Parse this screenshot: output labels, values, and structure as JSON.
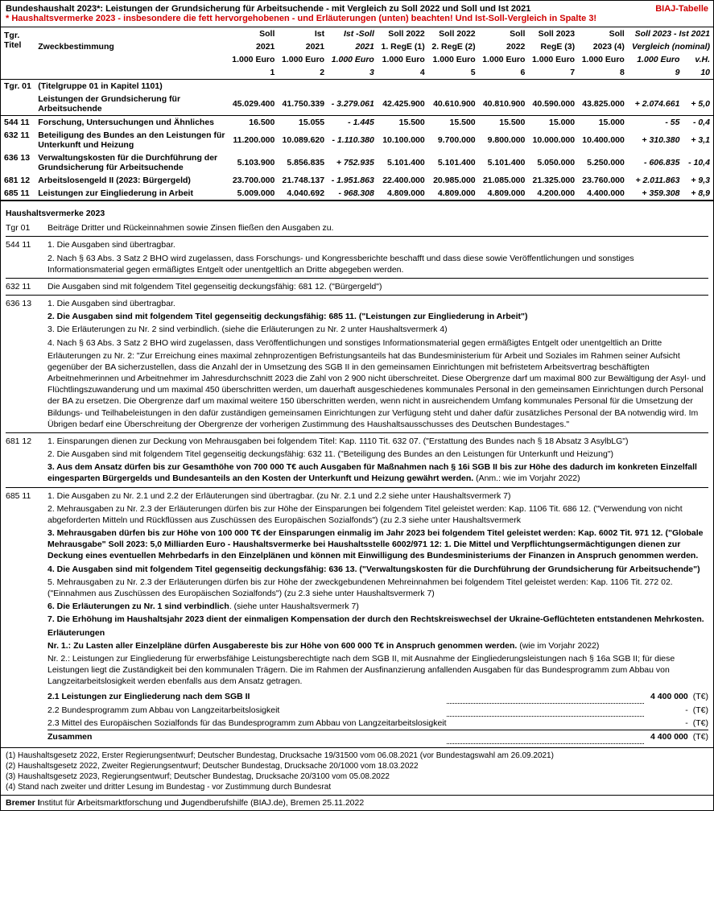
{
  "header": {
    "title": "Bundeshaushalt 2023*: Leistungen der Grundsicherung für Arbeitsuchende - mit Vergleich zu Soll 2022 und Soll und Ist 2021",
    "brand": "BIAJ-Tabelle",
    "subtitle": "* Haushaltsvermerke 2023 - insbesondere die fett hervorgehobenen - und Erläuterungen (unten) beachten! Und Ist-Soll-Vergleich in Spalte 3!"
  },
  "columns": {
    "code": "Tgr.\nTitel",
    "desc": "Zweckbestimmung",
    "c1h1": "Soll",
    "c1h2": "2021",
    "c2h1": "Ist",
    "c2h2": "2021",
    "c3h1": "Ist -Soll",
    "c3h2": "2021",
    "c4h1": "Soll 2022",
    "c4h2": "1. RegE (1)",
    "c5h1": "Soll 2022",
    "c5h2": "2. RegE (2)",
    "c6h1": "Soll",
    "c6h2": "2022",
    "c7h1": "Soll 2023",
    "c7h2": "RegE (3)",
    "c8h1": "Soll",
    "c8h2": "2023 (4)",
    "c9h1": "Soll 2023 - Ist 2021",
    "c9h2": "Vergleich (nominal)",
    "unit": "1.000 Euro",
    "vh": "v.H.",
    "colnum1": "1",
    "colnum2": "2",
    "colnum3": "3",
    "colnum4": "4",
    "colnum5": "5",
    "colnum6": "6",
    "colnum7": "7",
    "colnum8": "8",
    "colnum9": "9",
    "colnum10": "10"
  },
  "rows": [
    {
      "code": "Tgr. 01",
      "desc": "(Titelgruppe 01 in Kapitel 1101)",
      "bold": true,
      "v": []
    },
    {
      "code": "",
      "desc": "Leistungen der Grundsicherung für Arbeitsuchende",
      "bold": true,
      "v": [
        "45.029.400",
        "41.750.339",
        "- 3.279.061",
        "42.425.900",
        "40.610.900",
        "40.810.900",
        "40.590.000",
        "43.825.000",
        "+ 2.074.661",
        "+ 5,0"
      ]
    },
    {
      "code": "544 11",
      "desc": "Forschung, Untersuchungen und Ähnliches",
      "bold": true,
      "v": [
        "16.500",
        "15.055",
        "- 1.445",
        "15.500",
        "15.500",
        "15.500",
        "15.000",
        "15.000",
        "- 55",
        "- 0,4"
      ]
    },
    {
      "code": "632 11",
      "desc": "Beteiligung des Bundes an den Leistungen für Unterkunft und Heizung",
      "bold": true,
      "v": [
        "11.200.000",
        "10.089.620",
        "- 1.110.380",
        "10.100.000",
        "9.700.000",
        "9.800.000",
        "10.000.000",
        "10.400.000",
        "+ 310.380",
        "+ 3,1"
      ]
    },
    {
      "code": "636 13",
      "desc": "Verwaltungskosten für die Durchführung der Grundsicherung für Arbeitsuchende",
      "bold": true,
      "v": [
        "5.103.900",
        "5.856.835",
        "+ 752.935",
        "5.101.400",
        "5.101.400",
        "5.101.400",
        "5.050.000",
        "5.250.000",
        "- 606.835",
        "- 10,4"
      ]
    },
    {
      "code": "681 12",
      "desc": "Arbeitslosengeld II (2023: Bürgergeld)",
      "bold": true,
      "v": [
        "23.700.000",
        "21.748.137",
        "- 1.951.863",
        "22.400.000",
        "20.985.000",
        "21.085.000",
        "21.325.000",
        "23.760.000",
        "+ 2.011.863",
        "+ 9,3"
      ]
    },
    {
      "code": "685 11",
      "desc": "Leistungen zur Eingliederung in Arbeit",
      "bold": true,
      "v": [
        "5.009.000",
        "4.040.692",
        "- 968.308",
        "4.809.000",
        "4.809.000",
        "4.809.000",
        "4.200.000",
        "4.400.000",
        "+ 359.308",
        "+ 8,9"
      ]
    }
  ],
  "notes_title": "Haushaltsvermerke 2023",
  "notes": [
    {
      "code": "Tgr 01",
      "items": [
        {
          "t": "Beiträge Dritter und Rückeinnahmen sowie Zinsen fließen den Ausgaben zu."
        }
      ]
    },
    {
      "code": "544 11",
      "items": [
        {
          "t": "1. Die Ausgaben sind übertragbar."
        },
        {
          "t": "2. Nach § 63 Abs. 3 Satz 2 BHO wird zugelassen, dass Forschungs- und Kongressberichte beschafft und dass diese sowie Veröffentlichungen und sonstiges Informationsmaterial gegen ermäßigtes Entgelt oder unentgeltlich an Dritte abgegeben werden."
        }
      ]
    },
    {
      "code": "632 11",
      "items": [
        {
          "t": "Die Ausgaben sind mit folgendem Titel gegenseitig deckungsfähig: 681 12. (\"Bürgergeld\")"
        }
      ]
    },
    {
      "code": "636 13",
      "items": [
        {
          "t": "1. Die Ausgaben sind übertragbar."
        },
        {
          "t": "2. Die Ausgaben sind mit folgendem Titel gegenseitig deckungsfähig: 685 11. (\"Leistungen zur Eingliederung in Arbeit\")",
          "bold": true
        },
        {
          "t": "3. Die Erläuterungen zu Nr. 2 sind verbindlich. (siehe die Erläuterungen zu Nr. 2 unter Haushaltsvermerk 4)"
        },
        {
          "t": "4. Nach § 63 Abs. 3 Satz 2 BHO wird zugelassen, dass Veröffentlichungen und sonstiges Informationsmaterial gegen ermäßigtes Entgelt oder unentgeltlich an Dritte"
        },
        {
          "t": "Erläuterungen zu Nr. 2: \"Zur Erreichung eines maximal zehnprozentigen Befristungsanteils hat das Bundesministerium für Arbeit und Soziales im Rahmen seiner Aufsicht gegenüber der BA sicherzustellen, dass die Anzahl der in Umsetzung des SGB II in den gemeinsamen Einrichtungen mit befristetem Arbeitsvertrag beschäftigten Arbeitnehmerinnen und Arbeitnehmer im Jahresdurchschnitt 2023 die Zahl von 2 900 nicht überschreitet. Diese Obergrenze darf um maximal 800 zur Bewältigung der Asyl- und Flüchtlingszuwanderung und um maximal 450 überschritten werden, um dauerhaft ausgeschiedenes kommunales Personal in den gemeinsamen Einrichtungen durch Personal der BA zu ersetzen. Die Obergrenze darf um maximal weitere 150 überschritten werden, wenn nicht in ausreichendem Umfang kommunales Personal für die Umsetzung der Bildungs- und Teilhabeleistungen in den dafür zuständigen gemeinsamen Einrichtungen zur Verfügung steht und daher dafür zusätzliches Personal der BA notwendig wird. Im Übrigen bedarf eine Überschreitung der Obergrenze der vorherigen Zustimmung des Haushaltsausschusses des Deutschen Bundestages.\""
        }
      ]
    },
    {
      "code": "681 12",
      "items": [
        {
          "t": "1. Einsparungen dienen zur Deckung von Mehrausgaben bei folgendem Titel: Kap. 1110 Tit. 632 07. (\"Erstattung des Bundes nach § 18 Absatz 3 AsylbLG\")"
        },
        {
          "t": "2. Die Ausgaben sind mit folgendem Titel gegenseitig deckungsfähig: 632 11. (\"Beteiligung des Bundes an den Leistungen für Unterkunft und Heizung\")"
        },
        {
          "t": "3. Aus dem Ansatz dürfen bis zur Gesamthöhe von 700 000 T€ auch Ausgaben für Maßnahmen nach § 16i SGB II bis zur Höhe des dadurch im konkreten Einzelfall eingesparten Bürgergelds und Bundesanteils an den Kosten der Unterkunft und Heizung gewährt werden. (Anm.: wie im Vorjahr 2022)",
          "bold": true,
          "boldPartial": "(Anm.: wie im Vorjahr 2022)"
        }
      ]
    },
    {
      "code": "685 11",
      "items": [
        {
          "t": "1. Die Ausgaben zu Nr. 2.1 und 2.2 der Erläuterungen sind übertragbar. (zu Nr. 2.1 und 2.2 siehe unter Haushaltsvermerk 7)"
        },
        {
          "t": "2. Mehrausgaben zu Nr. 2.3 der Erläuterungen dürfen bis zur Höhe der Einsparungen bei folgendem Titel geleistet werden: Kap. 1106 Tit. 686 12. (\"Verwendung von nicht abgeforderten Mitteln und Rückflüssen aus Zuschüssen des Europäischen Sozialfonds\") (zu 2.3 siehe unter Haushaltsvermerk"
        },
        {
          "t": "3. Mehrausgaben dürfen bis zur Höhe von 100 000 T€ der Einsparungen einmalig im Jahr 2023 bei folgendem Titel geleistet werden: Kap. 6002 Tit. 971 12. (\"Globale Mehrausgabe\" Soll 2023: 5,0 Milliarden Euro - Haushaltsvermerke bei Haushaltsstelle 6002/971 12: 1. Die Mittel und Verpflichtungsermächtigungen dienen zur Deckung eines eventuellen Mehrbedarfs in den Einzelplänen und können mit Einwilligung des Bundesministeriums der Finanzen in Anspruch genommen werden.",
          "bold": true
        },
        {
          "t": "4. Die Ausgaben sind mit folgendem Titel gegenseitig deckungsfähig: 636 13. (\"Verwaltungskosten für die Durchführung der Grundsicherung für Arbeitsuchende\")",
          "bold": true
        },
        {
          "t": "5. Mehrausgaben zu Nr. 2.3 der Erläuterungen dürfen bis zur Höhe der zweckgebundenen Mehreinnahmen bei folgendem Titel geleistet werden: Kap. 1106 Tit. 272 02. (\"Einnahmen aus Zuschüssen des Europäischen Sozialfonds\") (zu 2.3 siehe unter Haushaltsvermerk 7)"
        },
        {
          "t": "6. Die Erläuterungen zu Nr. 1 sind verbindlich. (siehe unter Haushaltsvermerk 7)",
          "bold": true,
          "boldPartial": ". (siehe unter Haushaltsvermerk 7)"
        },
        {
          "t": "7. Die Erhöhung im Haushaltsjahr 2023 dient der einmaligen Kompensation der durch den Rechtskreiswechsel der Ukraine-Geflüchteten entstandenen Mehrkosten.",
          "bold": true
        }
      ]
    },
    {
      "code": "",
      "erl": true,
      "items": [
        {
          "t": "Erläuterungen",
          "bold": true
        },
        {
          "t": "Nr. 1.: Zu Lasten aller Einzelpläne dürfen Ausgabereste bis zur Höhe von 600 000 T€ in Anspruch genommen werden. (wie im Vorjahr 2022)",
          "bold": true,
          "boldPartial": " (wie im Vorjahr 2022)"
        },
        {
          "t": "Nr. 2.: Leistungen zur Eingliederung für erwerbsfähige Leistungsberechtigte nach dem SGB II, mit Ausnahme der Eingliederungsleistungen nach § 16a SGB II; für diese Leistungen liegt die Zuständigkeit bei den kommunalen Trägern. Die im Rahmen der Ausfinanzierung anfallenden Ausgaben für das Bundesprogramm zum Abbau von Langzeitarbeitslosigkeit werden ebenfalls aus dem Ansatz getragen."
        }
      ]
    }
  ],
  "subtotals": [
    {
      "label": "2.1 Leistungen zur Eingliederung nach dem SGB II",
      "val": "4 400 000",
      "unit": "(T€)",
      "bold": true
    },
    {
      "label": "2.2 Bundesprogramm zum Abbau von Langzeitarbeitslosigkeit",
      "val": "-",
      "unit": "(T€)"
    },
    {
      "label": "2.3 Mittel des Europäischen Sozialfonds für das Bundesprogramm zum Abbau von Langzeitarbeitslosigkeit",
      "val": "-",
      "unit": "(T€)"
    },
    {
      "label": "Zusammen",
      "val": "4 400 000",
      "unit": "(T€)",
      "bold": true
    }
  ],
  "footnotes": [
    "(1) Haushaltsgesetz 2022, Erster Regierungsentwurf; Deutscher Bundestag, Drucksache 19/31500 vom 06.08.2021 (vor Bundestagswahl am 26.09.2021)",
    "(2) Haushaltsgesetz 2022, Zweiter Regierungsentwurf; Deutscher Bundestag, Drucksache 20/1000 vom 18.03.2022",
    "(3) Haushaltsgesetz 2023, Regierungsentwurf; Deutscher Bundestag, Drucksache 20/3100 vom 05.08.2022",
    "(4) Stand nach zweiter und dritter Lesung im Bundestag - vor Zustimmung durch Bundesrat"
  ],
  "source": {
    "pre": "Bremer ",
    "b1": "I",
    "mid1": "nstitut für ",
    "b2": "A",
    "mid2": "rbeitsmarktforschung und ",
    "b3": "J",
    "post": "ugendberufshilfe (BIAJ.de), Bremen 25.11.2022"
  }
}
